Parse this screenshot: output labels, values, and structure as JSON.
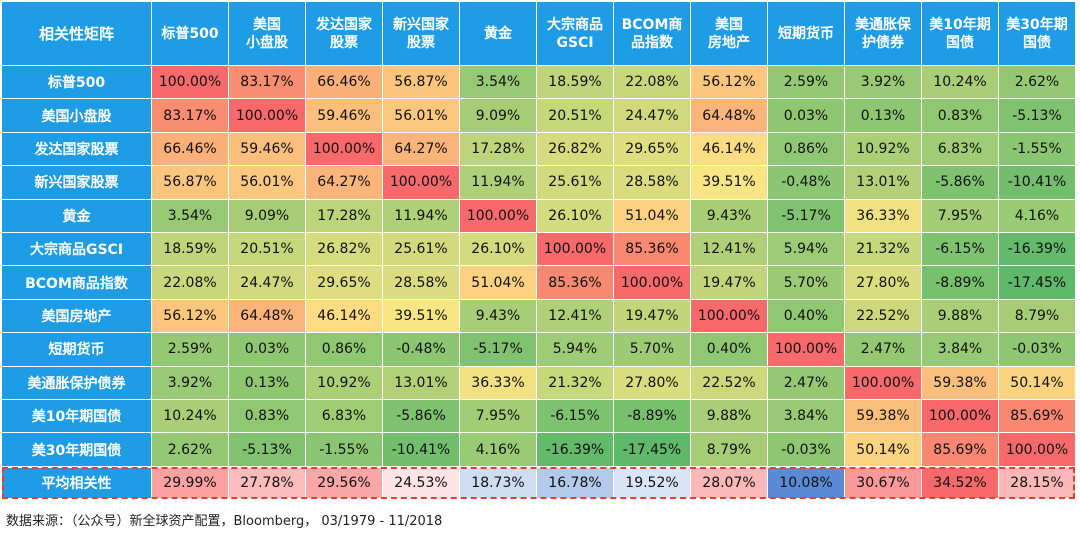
{
  "chart_data": {
    "type": "heatmap",
    "corner_label": "相关性矩阵",
    "columns": [
      "标普500",
      "美国\n小盘股",
      "发达国家\n股票",
      "新兴国家\n股票",
      "黄金",
      "大宗商品\nGSCI",
      "BCOM商\n品指数",
      "美国\n房地产",
      "短期货币",
      "美通胀保\n护债券",
      "美10年期\n国债",
      "美30年期\n国债"
    ],
    "rows": [
      {
        "label": "标普500",
        "values": [
          "100.00%",
          "83.17%",
          "66.46%",
          "56.87%",
          "3.54%",
          "18.59%",
          "22.08%",
          "56.12%",
          "2.59%",
          "3.92%",
          "10.24%",
          "2.62%"
        ]
      },
      {
        "label": "美国小盘股",
        "values": [
          "83.17%",
          "100.00%",
          "59.46%",
          "56.01%",
          "9.09%",
          "20.51%",
          "24.47%",
          "64.48%",
          "0.03%",
          "0.13%",
          "0.83%",
          "-5.13%"
        ]
      },
      {
        "label": "发达国家股票",
        "values": [
          "66.46%",
          "59.46%",
          "100.00%",
          "64.27%",
          "17.28%",
          "26.82%",
          "29.65%",
          "46.14%",
          "0.86%",
          "10.92%",
          "6.83%",
          "-1.55%"
        ]
      },
      {
        "label": "新兴国家股票",
        "values": [
          "56.87%",
          "56.01%",
          "64.27%",
          "100.00%",
          "11.94%",
          "25.61%",
          "28.58%",
          "39.51%",
          "-0.48%",
          "13.01%",
          "-5.86%",
          "-10.41%"
        ]
      },
      {
        "label": "黄金",
        "values": [
          "3.54%",
          "9.09%",
          "17.28%",
          "11.94%",
          "100.00%",
          "26.10%",
          "51.04%",
          "9.43%",
          "-5.17%",
          "36.33%",
          "7.95%",
          "4.16%"
        ]
      },
      {
        "label": "大宗商品GSCI",
        "values": [
          "18.59%",
          "20.51%",
          "26.82%",
          "25.61%",
          "26.10%",
          "100.00%",
          "85.36%",
          "12.41%",
          "5.94%",
          "21.32%",
          "-6.15%",
          "-16.39%"
        ]
      },
      {
        "label": "BCOM商品指数",
        "values": [
          "22.08%",
          "24.47%",
          "29.65%",
          "28.58%",
          "51.04%",
          "85.36%",
          "100.00%",
          "19.47%",
          "5.70%",
          "27.80%",
          "-8.89%",
          "-17.45%"
        ]
      },
      {
        "label": "美国房地产",
        "values": [
          "56.12%",
          "64.48%",
          "46.14%",
          "39.51%",
          "9.43%",
          "12.41%",
          "19.47%",
          "100.00%",
          "0.40%",
          "22.52%",
          "9.88%",
          "8.79%"
        ]
      },
      {
        "label": "短期货币",
        "values": [
          "2.59%",
          "0.03%",
          "0.86%",
          "-0.48%",
          "-5.17%",
          "5.94%",
          "5.70%",
          "0.40%",
          "100.00%",
          "2.47%",
          "3.84%",
          "-0.03%"
        ]
      },
      {
        "label": "美通胀保护债券",
        "values": [
          "3.92%",
          "0.13%",
          "10.92%",
          "13.01%",
          "36.33%",
          "21.32%",
          "27.80%",
          "22.52%",
          "2.47%",
          "100.00%",
          "59.38%",
          "50.14%"
        ]
      },
      {
        "label": "美10年期国债",
        "values": [
          "10.24%",
          "0.83%",
          "6.83%",
          "-5.86%",
          "7.95%",
          "-6.15%",
          "-8.89%",
          "9.88%",
          "3.84%",
          "59.38%",
          "100.00%",
          "85.69%"
        ]
      },
      {
        "label": "美30年期国债",
        "values": [
          "2.62%",
          "-5.13%",
          "-1.55%",
          "-10.41%",
          "4.16%",
          "-16.39%",
          "-17.45%",
          "8.79%",
          "-0.03%",
          "50.14%",
          "85.69%",
          "100.00%"
        ]
      }
    ],
    "average_row": {
      "label": "平均相关性",
      "values": [
        "29.99%",
        "27.78%",
        "29.56%",
        "24.53%",
        "18.73%",
        "16.78%",
        "19.52%",
        "28.07%",
        "10.08%",
        "30.67%",
        "34.52%",
        "28.15%"
      ]
    },
    "value_range": [
      -17.45,
      100.0
    ],
    "average_range": [
      10.08,
      34.52
    ],
    "colors": {
      "header_bg": "#1e9ce6",
      "header_text": "#ffffff",
      "low": "#5fb96a",
      "mid": "#fde685",
      "high": "#f8696b",
      "avg_low": "#5a8ad6",
      "avg_mid": "#ffffff",
      "avg_high": "#f8696b",
      "highlight_border": "#e0403a"
    }
  },
  "source_note": "数据来源：（公众号）新全球资产配置，Bloomberg， 03/1979 - 11/2018"
}
